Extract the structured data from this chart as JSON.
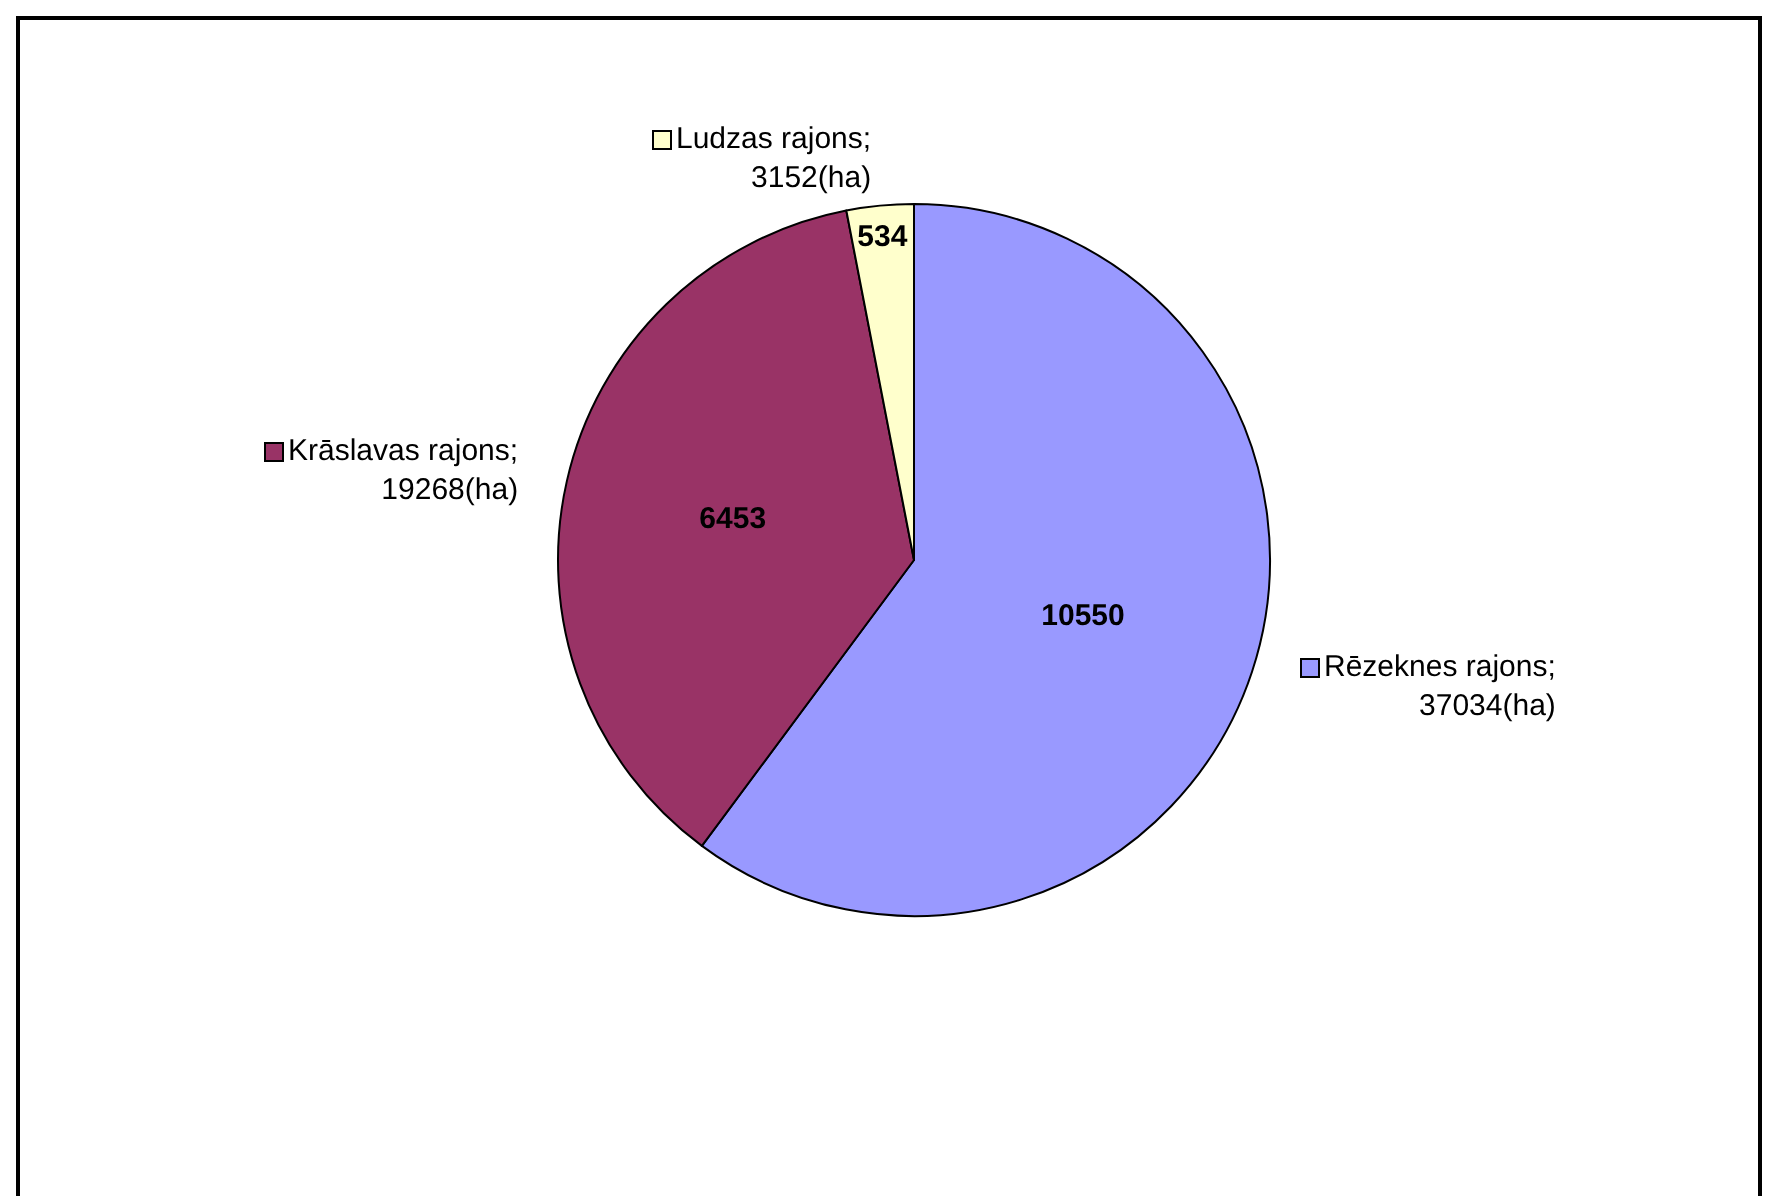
{
  "chart_data": {
    "type": "pie",
    "categories": [
      "Rēzeknes rajons; 37034(ha)",
      "Krāslavas rajons; 19268(ha)",
      "Ludzas rajons; 3152(ha)"
    ],
    "values": [
      10550,
      6453,
      534
    ],
    "colors": [
      "#9999ff",
      "#993366",
      "#ffffcc"
    ],
    "data_labels": true,
    "legend": true
  }
}
